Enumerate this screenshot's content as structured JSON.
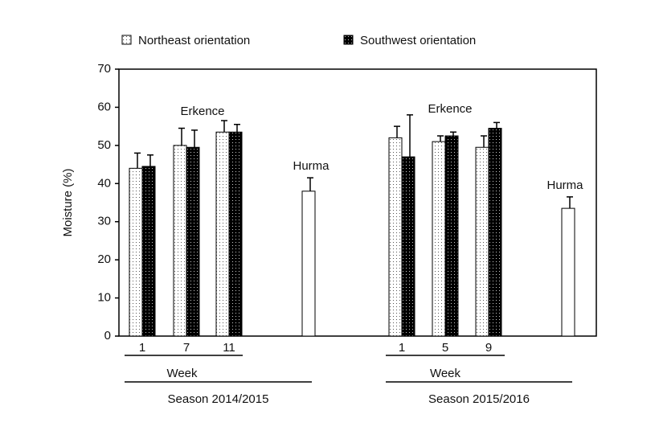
{
  "chart_data": {
    "type": "bar",
    "y_label": "Moisture (%)",
    "ylim": [
      0,
      70
    ],
    "yticks": [
      0,
      10,
      20,
      30,
      40,
      50,
      60,
      70
    ],
    "categories": [
      "1",
      "7",
      "11",
      "1",
      "5",
      "9"
    ],
    "series": [
      {
        "name": "Northeast orientation",
        "color": "#ffffff",
        "values": [
          44,
          50,
          53.5,
          52,
          51,
          49.5
        ],
        "errors": [
          4,
          4.5,
          3,
          3,
          1.5,
          3
        ]
      },
      {
        "name": "Southwest orientation",
        "color": "#000000",
        "values": [
          44.5,
          49.5,
          53.5,
          47,
          52.5,
          54.5
        ],
        "errors": [
          3,
          4.5,
          2,
          11,
          1,
          1.5
        ]
      }
    ],
    "groups": [
      {
        "season": "Season 2014/2015",
        "axis_label": "Week",
        "annotation": "Erkence",
        "control_label": "Hurma",
        "control_value": 38,
        "control_error": 3.5
      },
      {
        "season": "Season 2015/2016",
        "axis_label": "Week",
        "annotation": "Erkence",
        "control_label": "Hurma",
        "control_value": 33.5,
        "control_error": 3
      }
    ]
  }
}
